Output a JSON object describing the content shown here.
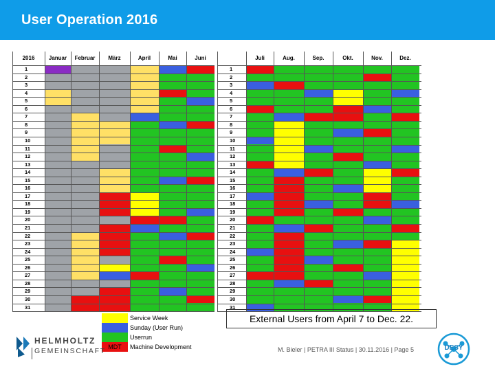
{
  "header": {
    "title": "User Operation 2016"
  },
  "calendar": {
    "year": "2016",
    "months": [
      "Januar",
      "Februar",
      "März",
      "April",
      "Mai",
      "Juni",
      "Juli",
      "Aug.",
      "Sep.",
      "Okt.",
      "Nov.",
      "Dez."
    ],
    "days": [
      "1",
      "2",
      "3",
      "4",
      "5",
      "6",
      "7",
      "8",
      "9",
      "10",
      "11",
      "12",
      "13",
      "14",
      "15",
      "16",
      "17",
      "18",
      "19",
      "20",
      "21",
      "22",
      "23",
      "24",
      "25",
      "26",
      "27",
      "28",
      "29",
      "30",
      "31"
    ],
    "colors": {
      "service": "#ffff00",
      "sunday": "#3a5fe0",
      "userrun": "#22c422",
      "mdt": "#e81010",
      "closed": "#9fa3a8",
      "shutdown": "#ffe066",
      "purple": "#8a2bc4",
      "empty": "#ffffff"
    }
  },
  "legend": {
    "items": [
      {
        "swatch": "",
        "label": "Service Week",
        "color": "#ffff00"
      },
      {
        "swatch": "",
        "label": "Sunday (User Run)",
        "color": "#3a5fe0"
      },
      {
        "swatch": "",
        "label": "Userrun",
        "color": "#22c422"
      },
      {
        "swatch": "MDT",
        "label": "Machine Development",
        "color": "#e81010"
      }
    ]
  },
  "external_note": "External Users from April 7 to Dec. 22.",
  "logo": {
    "line1": "HELMHOLTZ",
    "line2": "GEMEINSCHAFT",
    "desy_text": "DESY"
  },
  "footer": {
    "text": "M. Bieler | PETRA III Status | 30.11.2016 | Page 5"
  }
}
